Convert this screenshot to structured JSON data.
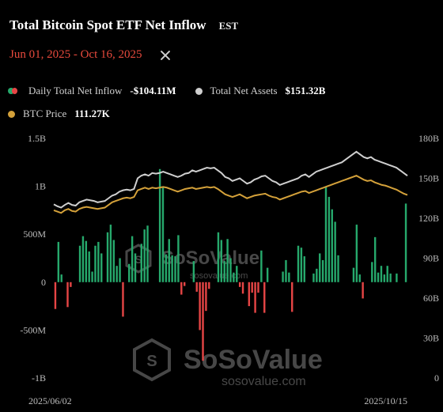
{
  "header": {
    "title": "Total Bitcoin Spot ETF Net Inflow",
    "timezone": "EST",
    "date_range": "Jun 01, 2025 - Oct 16, 2025"
  },
  "legend": {
    "inflow_label": "Daily Total Net Inflow",
    "inflow_value": "-$104.11M",
    "assets_label": "Total Net Assets",
    "assets_value": "$151.32B",
    "price_label": "BTC Price",
    "price_value": "111.27K"
  },
  "watermark": {
    "brand": "SoSoValue",
    "site": "sosovalue.com"
  },
  "colors": {
    "positive": "#26a96c",
    "negative": "#e64545",
    "net_assets": "#cfcfcf",
    "btc_price": "#d4a13a",
    "date_range": "#e84a3d"
  },
  "chart_data": {
    "type": "bar",
    "x_start_label": "2025/06/02",
    "x_end_label": "2025/10/15",
    "left_axis": {
      "ylim": [
        -1000,
        1500
      ],
      "ticks": [
        "1.5B",
        "1B",
        "500M",
        "0",
        "-500M",
        "-1B"
      ],
      "tick_values": [
        1500,
        1000,
        500,
        0,
        -500,
        -1000
      ]
    },
    "right_axis": {
      "ylim": [
        0,
        180
      ],
      "ticks": [
        "180B",
        "150B",
        "120B",
        "90B",
        "60B",
        "30B",
        "0"
      ],
      "tick_values": [
        180,
        150,
        120,
        90,
        60,
        30,
        0
      ]
    },
    "series": [
      {
        "name": "Daily Total Net Inflow",
        "type": "bar",
        "axis": "left",
        "values": [
          -280,
          420,
          80,
          0,
          -260,
          -50,
          0,
          0,
          380,
          480,
          430,
          320,
          110,
          380,
          420,
          300,
          0,
          520,
          600,
          440,
          170,
          250,
          -360,
          0,
          190,
          480,
          300,
          0,
          400,
          550,
          590,
          0,
          0,
          0,
          1180,
          1000,
          290,
          450,
          280,
          270,
          490,
          -130,
          -40,
          0,
          0,
          220,
          -100,
          -500,
          -820,
          -300,
          -70,
          0,
          0,
          520,
          440,
          220,
          450,
          250,
          100,
          170,
          -50,
          -120,
          0,
          -250,
          -110,
          -320,
          -110,
          330,
          -320,
          150,
          0,
          0,
          0,
          0,
          110,
          230,
          100,
          -310,
          0,
          380,
          360,
          270,
          0,
          0,
          90,
          140,
          300,
          230,
          1000,
          890,
          760,
          630,
          280,
          0,
          0,
          0,
          0,
          150,
          600,
          80,
          -170,
          0,
          0,
          210,
          470,
          100,
          170,
          80,
          170,
          90,
          0,
          90,
          0,
          0,
          820,
          1140,
          1000,
          0,
          0,
          0,
          0,
          0,
          0,
          0,
          0,
          0,
          0,
          0,
          0,
          0,
          0,
          90,
          0,
          0,
          0,
          0,
          0,
          0,
          0,
          0,
          0,
          0,
          0,
          0,
          0,
          0,
          0,
          0,
          0,
          0,
          0,
          0,
          0,
          0,
          0,
          0,
          0,
          0,
          0,
          0,
          0,
          0,
          0,
          0,
          0,
          0,
          0,
          0,
          0,
          0,
          0,
          0,
          0,
          0,
          0,
          0,
          0,
          0,
          0,
          0,
          0,
          0,
          0,
          0,
          0,
          0,
          0,
          0,
          0,
          0,
          0,
          0,
          0
        ]
      },
      {
        "name": "Total Net Assets",
        "type": "line",
        "axis": "right",
        "values": [
          130.5,
          129,
          128,
          130,
          131.5,
          130,
          129.5,
          132,
          133,
          134,
          133.5,
          133,
          132,
          132.5,
          133,
          135,
          137,
          138,
          140,
          141,
          141.5,
          141,
          142,
          150,
          152,
          153,
          152,
          154,
          153.5,
          154,
          155,
          154,
          153,
          152,
          151,
          152,
          153.5,
          154,
          156,
          155,
          156,
          157,
          158,
          157.5,
          158,
          156,
          154,
          151,
          150,
          148,
          149,
          150,
          148,
          146,
          147,
          149,
          150,
          151.5,
          152,
          150,
          148,
          147,
          145,
          146,
          147,
          148,
          149,
          150,
          152,
          153,
          151,
          153,
          155,
          156,
          157,
          158,
          159,
          160,
          161,
          162,
          164,
          166,
          168,
          170,
          168,
          166,
          165,
          166,
          164,
          163,
          162,
          161,
          160,
          159,
          158,
          156,
          154,
          152
        ]
      },
      {
        "name": "BTC Price",
        "type": "line",
        "axis": "right",
        "values": [
          126,
          125,
          124,
          126,
          127,
          125.5,
          125,
          127,
          128,
          128.5,
          128,
          127.5,
          127,
          127.5,
          128,
          130,
          132,
          133,
          134,
          135,
          135.5,
          135,
          136,
          141,
          142,
          143,
          142,
          143,
          142.5,
          143,
          143.5,
          143,
          142,
          141,
          140,
          141,
          142,
          142.5,
          143,
          142,
          142.5,
          143,
          143.5,
          143,
          143.5,
          142,
          140,
          138,
          137,
          136,
          137,
          138,
          136.5,
          135,
          136,
          137,
          137.5,
          138,
          138.5,
          137,
          136,
          135.5,
          134,
          135,
          136,
          137,
          138,
          139,
          140,
          140.5,
          139,
          140,
          141,
          142,
          143,
          144,
          145,
          146,
          147,
          148,
          149,
          150,
          151,
          152,
          150.5,
          149,
          148,
          148.5,
          147,
          146,
          145,
          144.5,
          143.5,
          142.5,
          141.5,
          140,
          138.5,
          137.5
        ]
      }
    ],
    "legend_position": "top-left",
    "grid": false
  }
}
